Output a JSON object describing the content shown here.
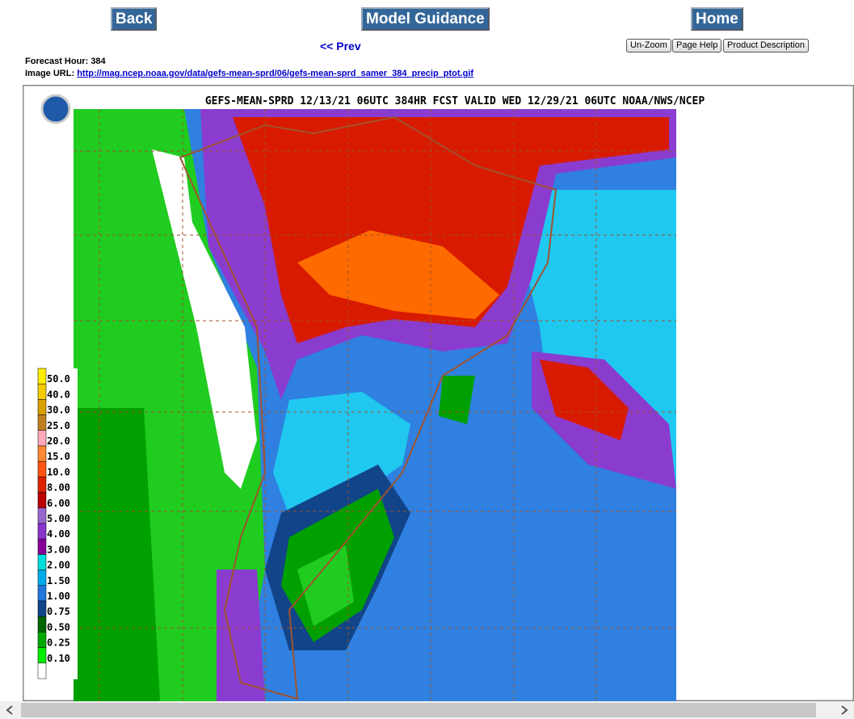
{
  "nav": {
    "back": "Back",
    "model_guidance": "Model Guidance",
    "home": "Home",
    "prev": "<< Prev"
  },
  "tools": {
    "unzoom": "Un-Zoom",
    "page_help": "Page Help",
    "product_description": "Product Description"
  },
  "info": {
    "forecast_hour_label": "Forecast Hour:",
    "forecast_hour": "384",
    "image_url_label": "Image URL:",
    "image_url": "http://mag.ncep.noaa.gov/data/gefs-mean-sprd/06/gefs-mean-sprd_samer_384_precip_ptot.gif"
  },
  "map": {
    "title": "GEFS-MEAN-SPRD 12/13/21 06UTC 384HR FCST VALID WED 12/29/21 06UTC NOAA/NWS/NCEP",
    "legend": [
      {
        "label": "50.0",
        "color": "#ffee00"
      },
      {
        "label": "40.0",
        "color": "#f2cc00"
      },
      {
        "label": "30.0",
        "color": "#d8a000"
      },
      {
        "label": "25.0",
        "color": "#c08020"
      },
      {
        "label": "20.0",
        "color": "#ffaabb"
      },
      {
        "label": "15.0",
        "color": "#ff8833"
      },
      {
        "label": "10.0",
        "color": "#ff5511"
      },
      {
        "label": "8.00",
        "color": "#dd2200"
      },
      {
        "label": "6.00",
        "color": "#bb0000"
      },
      {
        "label": "5.00",
        "color": "#9966cc"
      },
      {
        "label": "4.00",
        "color": "#8833cc"
      },
      {
        "label": "3.00",
        "color": "#880099"
      },
      {
        "label": "2.00",
        "color": "#00dddd"
      },
      {
        "label": "1.50",
        "color": "#00aaee"
      },
      {
        "label": "1.00",
        "color": "#2277dd"
      },
      {
        "label": "0.75",
        "color": "#114488"
      },
      {
        "label": "0.50",
        "color": "#006600"
      },
      {
        "label": "0.25",
        "color": "#00aa00"
      },
      {
        "label": "0.10",
        "color": "#00ee00"
      }
    ]
  }
}
